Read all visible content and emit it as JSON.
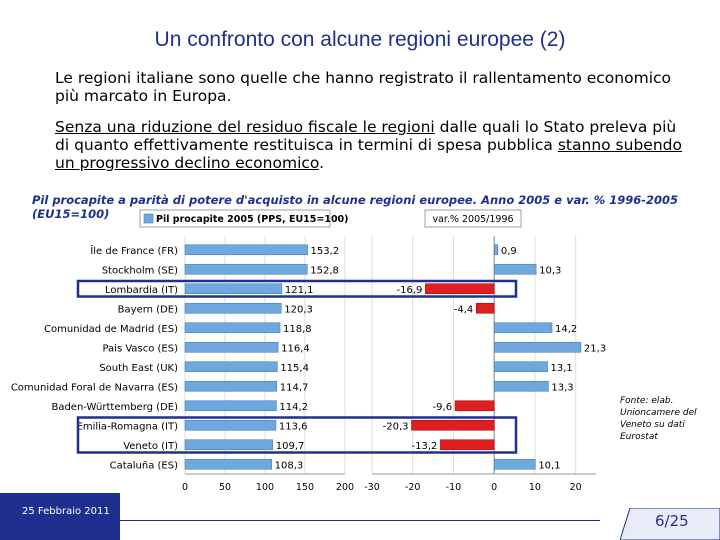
{
  "slide": {
    "title": "Un confronto con alcune regioni europee (2)",
    "para1": "Le regioni italiane sono quelle che hanno registrato il rallentamento economico più marcato in Europa.",
    "para2": {
      "u1": "Senza una riduzione del residuo fiscale le regioni",
      "t1": " dalle quali lo Stato preleva più di quanto effettivamente restituisca in termini di spesa pubblica ",
      "u2": "stanno subendo un progressivo declino economico",
      "t2": "."
    },
    "source": "Fonte: elab. Unioncamere del Veneto su dati Eurostat",
    "footer_date": "25 Febbraio 2011",
    "page": "6/25"
  },
  "colors": {
    "accent": "#1f2f8f",
    "bar_blue": "#6fa8dc",
    "bar_red": "#e02020",
    "highlight_box": "#1f2f8f"
  },
  "chart_data": {
    "type": "bar",
    "title": "Pil procapite a parità di potere d'acquisto in alcune regioni europee. Anno 2005 e var. % 1996-2005 (EU15=100)",
    "categories": [
      "Île de France (FR)",
      "Stockholm (SE)",
      "Lombardia (IT)",
      "Bayern (DE)",
      "Comunidad de Madrid (ES)",
      "Pais Vasco (ES)",
      "South East (UK)",
      "Comunidad Foral de Navarra (ES)",
      "Baden-Württemberg (DE)",
      "Emilia-Romagna (IT)",
      "Veneto (IT)",
      "Cataluña (ES)"
    ],
    "highlighted": [
      "Lombardia (IT)",
      "Emilia-Romagna (IT)",
      "Veneto (IT)"
    ],
    "series": [
      {
        "name": "Pil procapite 2005 (PPS, EU15=100)",
        "values": [
          153.2,
          152.8,
          121.1,
          120.3,
          118.8,
          116.4,
          115.4,
          114.7,
          114.2,
          113.6,
          109.7,
          108.3
        ],
        "labels": [
          "153,2",
          "152,8",
          "121,1",
          "120,3",
          "118,8",
          "116,4",
          "115,4",
          "114,7",
          "114,2",
          "113,6",
          "109,7",
          "108,3"
        ],
        "xlim": [
          0,
          200
        ],
        "ticks": [
          "0",
          "50",
          "100",
          "150",
          "200"
        ]
      },
      {
        "name": "var.% 2005/1996",
        "values": [
          0.9,
          10.3,
          -16.9,
          -4.4,
          14.2,
          21.3,
          13.1,
          13.3,
          -9.6,
          -20.3,
          -13.2,
          10.1
        ],
        "labels": [
          "0,9",
          "10,3",
          "-16,9",
          "-4,4",
          "14,2",
          "21,3",
          "13,1",
          "13,3",
          "-9,6",
          "-20,3",
          "-13,2",
          "10,1"
        ],
        "xlim": [
          -30,
          25
        ],
        "ticks": [
          "-30",
          "-20",
          "-10",
          "0",
          "10",
          "20"
        ]
      }
    ]
  }
}
